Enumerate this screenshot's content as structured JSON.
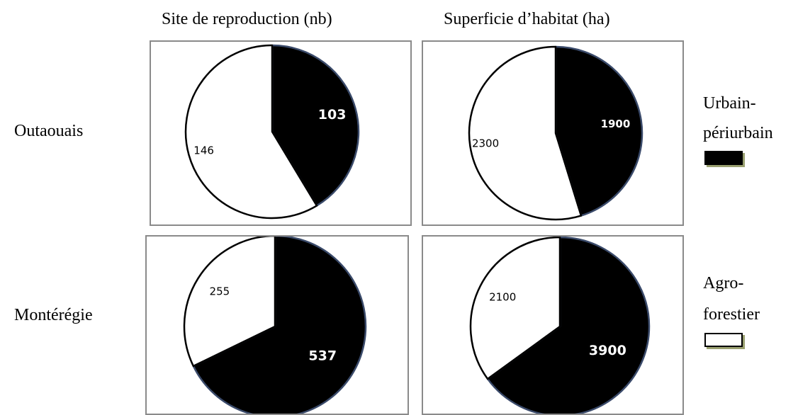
{
  "column_titles": [
    "Site de reproduction (nb)",
    "Superficie d’habitat (ha)"
  ],
  "row_labels": [
    "Outaouais",
    "Montérégie"
  ],
  "legend": [
    {
      "lines": [
        "Urbain-",
        "périurbain"
      ],
      "color": "#000000"
    },
    {
      "lines": [
        "Agro-",
        "forestier"
      ],
      "color": "#ffffff"
    }
  ],
  "chart_data": [
    {
      "type": "pie",
      "row": "Outaouais",
      "column": "Site de reproduction (nb)",
      "categories": [
        "Urbain-périurbain",
        "Agro-forestier"
      ],
      "values": [
        103,
        146
      ],
      "labels": [
        "103",
        "146"
      ]
    },
    {
      "type": "pie",
      "row": "Outaouais",
      "column": "Superficie d’habitat (ha)",
      "categories": [
        "Urbain-périurbain",
        "Agro-forestier"
      ],
      "values": [
        1900,
        2300
      ],
      "labels": [
        "1900",
        "2300"
      ]
    },
    {
      "type": "pie",
      "row": "Montérégie",
      "column": "Site de reproduction (nb)",
      "categories": [
        "Urbain-périurbain",
        "Agro-forestier"
      ],
      "values": [
        537,
        255
      ],
      "labels": [
        "537",
        "255"
      ]
    },
    {
      "type": "pie",
      "row": "Montérégie",
      "column": "Superficie d’habitat (ha)",
      "categories": [
        "Urbain-périurbain",
        "Agro-forestier"
      ],
      "values": [
        3900,
        2100
      ],
      "labels": [
        "3900",
        "2100"
      ]
    }
  ]
}
